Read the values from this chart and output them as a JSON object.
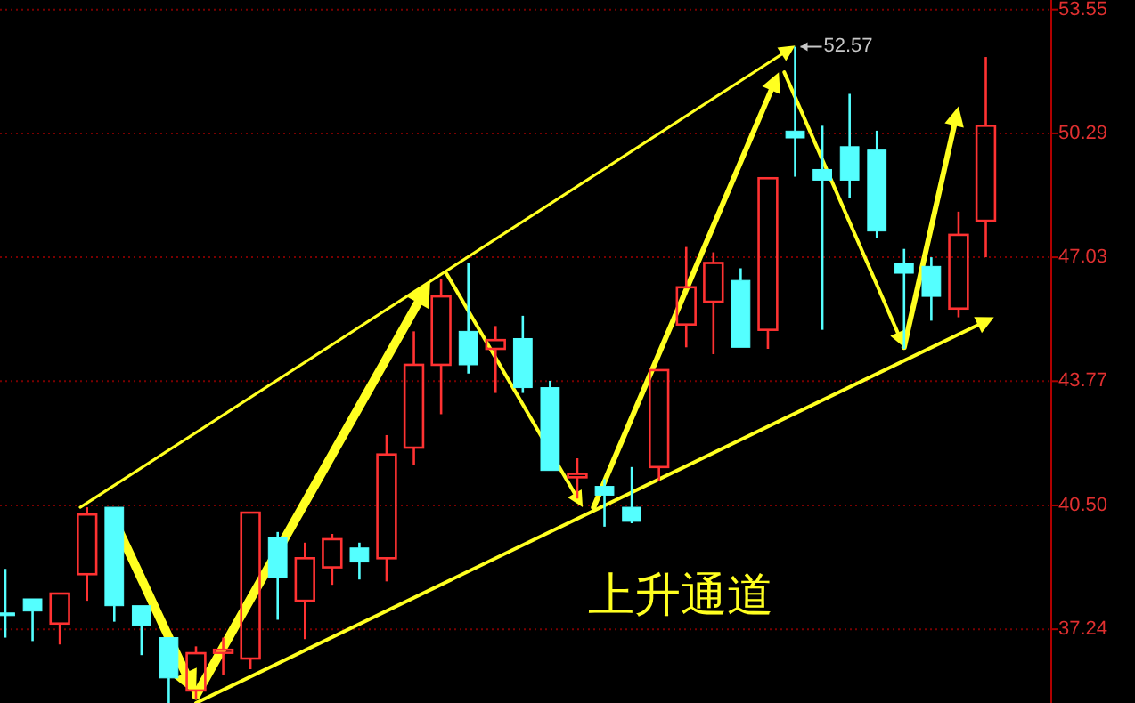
{
  "chart_data": {
    "type": "candlestick",
    "categories": [
      null,
      null,
      null,
      null,
      null,
      null,
      null,
      null,
      null,
      null,
      null,
      null,
      null,
      null,
      null,
      null,
      null,
      null,
      null,
      null,
      null,
      null,
      null,
      null,
      null,
      null,
      null,
      null,
      null,
      null,
      null,
      null,
      null,
      null,
      null,
      null,
      null
    ],
    "ohlc": [
      [
        37.67,
        38.83,
        37.02,
        37.62
      ],
      [
        38.04,
        38.04,
        36.93,
        37.72
      ],
      [
        37.39,
        38.18,
        36.84,
        38.18
      ],
      [
        38.69,
        40.45,
        37.99,
        40.26
      ],
      [
        40.45,
        40.45,
        37.44,
        37.86
      ],
      [
        37.86,
        37.86,
        36.56,
        37.35
      ],
      [
        37.02,
        37.02,
        35.3,
        35.96
      ],
      [
        35.63,
        36.79,
        35.4,
        36.61
      ],
      [
        36.62,
        37.02,
        36.05,
        36.7
      ],
      [
        36.47,
        40.31,
        36.19,
        40.31
      ],
      [
        39.66,
        39.8,
        37.49,
        38.6
      ],
      [
        37.99,
        39.52,
        36.98,
        39.11
      ],
      [
        38.87,
        39.75,
        38.41,
        39.61
      ],
      [
        39.38,
        39.52,
        38.55,
        39.01
      ],
      [
        39.11,
        42.35,
        38.5,
        41.84
      ],
      [
        42.02,
        45.08,
        41.56,
        44.2
      ],
      [
        44.2,
        46.47,
        42.9,
        46.0
      ],
      [
        45.08,
        46.88,
        43.97,
        44.2
      ],
      [
        44.62,
        45.22,
        43.46,
        44.85
      ],
      [
        44.89,
        45.49,
        43.46,
        43.6
      ],
      [
        43.6,
        43.78,
        41.42,
        41.42
      ],
      [
        41.24,
        41.74,
        40.68,
        41.33
      ],
      [
        41.0,
        41.19,
        39.94,
        40.77
      ],
      [
        40.45,
        41.51,
        40.03,
        40.08
      ],
      [
        41.51,
        44.06,
        41.14,
        44.06
      ],
      [
        45.26,
        47.3,
        44.66,
        46.24
      ],
      [
        45.86,
        47.16,
        44.48,
        46.88
      ],
      [
        46.42,
        46.74,
        44.66,
        44.66
      ],
      [
        45.12,
        49.11,
        44.62,
        49.11
      ],
      [
        50.35,
        52.57,
        49.15,
        50.17
      ],
      [
        49.34,
        50.49,
        45.12,
        49.06
      ],
      [
        49.94,
        51.33,
        48.6,
        49.06
      ],
      [
        49.85,
        50.36,
        47.53,
        47.72
      ],
      [
        46.88,
        47.25,
        44.62,
        46.61
      ],
      [
        46.79,
        47.03,
        45.36,
        46.0
      ],
      [
        45.68,
        48.23,
        45.45,
        47.62
      ],
      [
        47.99,
        52.3,
        47.03,
        50.49
      ]
    ],
    "colors": [
      "#54ffff",
      "#54ffff",
      "#ff3232",
      "#ff3232",
      "#54ffff",
      "#54ffff",
      "#54ffff",
      "#ff3232",
      "#ff3232",
      "#ff3232",
      "#54ffff",
      "#ff3232",
      "#ff3232",
      "#54ffff",
      "#ff3232",
      "#ff3232",
      "#ff3232",
      "#54ffff",
      "#ff3232",
      "#54ffff",
      "#54ffff",
      "#ff3232",
      "#54ffff",
      "#54ffff",
      "#ff3232",
      "#ff3232",
      "#ff3232",
      "#54ffff",
      "#ff3232",
      "#54ffff",
      "#54ffff",
      "#54ffff",
      "#54ffff",
      "#54ffff",
      "#54ffff",
      "#ff3232",
      "#ff3232"
    ],
    "ylim": [
      35.3,
      53.8
    ],
    "yticks": [
      37.24,
      {
        "value": 40.5,
        "label": "40.50"
      },
      43.77,
      47.03,
      50.29,
      53.55
    ],
    "grid": "y",
    "annotations": [
      "52.57",
      "上升通道"
    ]
  }
}
